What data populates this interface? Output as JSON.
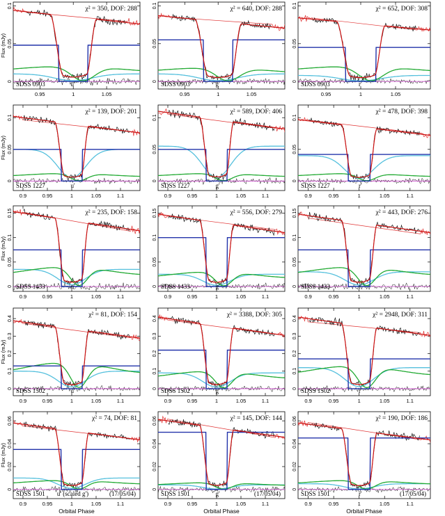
{
  "figure": {
    "xlabel": "Orbital Phase",
    "ylabel": "Flux (mJy)",
    "colors": {
      "data": "#111111",
      "data_unused": "#e03030",
      "model": "#cc1010",
      "white_dwarf": "#2233aa",
      "bright_spot": "#22aa33",
      "disc": "#55c0dd",
      "residual_zero": "#cc44cc"
    }
  },
  "chart_data": [
    {
      "type": "line",
      "object": "SDSS 0903",
      "band": "u'",
      "chi2": 350,
      "dof": 288,
      "title": "χ² = 350, DOF: 288",
      "label": "SDSS 0903",
      "band_label": "u'",
      "date": "",
      "xlim": [
        0.91,
        1.1
      ],
      "ylim": [
        -0.01,
        0.105
      ],
      "xticks": [
        0.95,
        1,
        1.05
      ],
      "yticks": [
        0,
        0.05,
        0.1
      ],
      "xlabel": "",
      "ylabel": "Flux (mJy)",
      "levels": {
        "total": 0.095,
        "wd": 0.048,
        "bs": 0.02,
        "disc": 0.01
      }
    },
    {
      "type": "line",
      "object": "SDSS 0903",
      "band": "g'",
      "chi2": 640,
      "dof": 288,
      "title": "χ² = 640, DOF: 288",
      "label": "SDSS 0903",
      "band_label": "g'",
      "date": "",
      "xlim": [
        0.91,
        1.1
      ],
      "ylim": [
        -0.01,
        0.105
      ],
      "xticks": [
        0.95,
        1,
        1.05
      ],
      "yticks": [
        0,
        0.05,
        0.1
      ],
      "xlabel": "",
      "ylabel": "",
      "levels": {
        "total": 0.088,
        "wd": 0.055,
        "bs": 0.018,
        "disc": 0.01
      }
    },
    {
      "type": "line",
      "object": "SDSS 0903",
      "band": "r'",
      "chi2": 652,
      "dof": 308,
      "title": "χ² = 652, DOF: 308",
      "label": "SDSS 0903",
      "band_label": "r'",
      "date": "",
      "xlim": [
        0.91,
        1.1
      ],
      "ylim": [
        -0.01,
        0.105
      ],
      "xticks": [
        0.95,
        1,
        1.05
      ],
      "yticks": [
        0,
        0.05,
        0.1
      ],
      "xlabel": "",
      "ylabel": "",
      "levels": {
        "total": 0.085,
        "wd": 0.045,
        "bs": 0.02,
        "disc": 0.008
      }
    },
    {
      "type": "line",
      "object": "SDSS 1227",
      "band": "u'",
      "chi2": 139,
      "dof": 201,
      "title": "χ² = 139, DOF: 201",
      "label": "SDSS 1227",
      "band_label": "u'",
      "date": "",
      "xlim": [
        0.88,
        1.14
      ],
      "ylim": [
        -0.015,
        0.12
      ],
      "xticks": [
        0.9,
        0.95,
        1,
        1.05,
        1.1
      ],
      "yticks": [
        0,
        0.05,
        0.1
      ],
      "xlabel": "",
      "ylabel": "Flux (mJy)",
      "levels": {
        "total": 0.1,
        "wd": 0.05,
        "bs": 0.012,
        "disc": 0.05
      }
    },
    {
      "type": "line",
      "object": "SDSS 1227",
      "band": "g'",
      "chi2": 589,
      "dof": 406,
      "title": "χ² = 589, DOF: 406",
      "label": "SDSS 1227",
      "band_label": "g'",
      "date": "",
      "xlim": [
        0.88,
        1.14
      ],
      "ylim": [
        -0.015,
        0.12
      ],
      "xticks": [
        0.9,
        0.95,
        1,
        1.05,
        1.1
      ],
      "yticks": [
        0,
        0.05,
        0.1
      ],
      "xlabel": "",
      "ylabel": "",
      "levels": {
        "total": 0.108,
        "wd": 0.05,
        "bs": 0.012,
        "disc": 0.055
      }
    },
    {
      "type": "line",
      "object": "SDSS 1227",
      "band": "r'",
      "chi2": 478,
      "dof": 398,
      "title": "χ² = 478, DOF: 398",
      "label": "SDSS 1227",
      "band_label": "r'",
      "date": "",
      "xlim": [
        0.88,
        1.14
      ],
      "ylim": [
        -0.015,
        0.12
      ],
      "xticks": [
        0.9,
        0.95,
        1,
        1.05,
        1.1
      ],
      "yticks": [
        0,
        0.05,
        0.1
      ],
      "xlabel": "",
      "ylabel": "",
      "levels": {
        "total": 0.095,
        "wd": 0.042,
        "bs": 0.012,
        "disc": 0.04
      }
    },
    {
      "type": "line",
      "object": "SDSS 1433",
      "band": "u'",
      "chi2": 235,
      "dof": 158,
      "title": "χ² = 235, DOF: 158",
      "label": "SDSS 1433",
      "band_label": "u'",
      "date": "",
      "xlim": [
        0.88,
        1.14
      ],
      "ylim": [
        -0.01,
        0.165
      ],
      "xticks": [
        0.9,
        0.95,
        1,
        1.05,
        1.1
      ],
      "yticks": [
        0,
        0.05,
        0.1,
        0.15
      ],
      "xlabel": "",
      "ylabel": "Flux (mJy)",
      "levels": {
        "total": 0.15,
        "wd": 0.075,
        "bs": 0.04,
        "disc": 0.035
      }
    },
    {
      "type": "line",
      "object": "SDSS 1433",
      "band": "g'",
      "chi2": 556,
      "dof": 279,
      "title": "χ² = 556, DOF: 279",
      "label": "SDSS 1433",
      "band_label": "g'",
      "date": "",
      "xlim": [
        0.88,
        1.14
      ],
      "ylim": [
        -0.01,
        0.165
      ],
      "xticks": [
        0.9,
        0.95,
        1,
        1.05,
        1.1
      ],
      "yticks": [
        0,
        0.05,
        0.1,
        0.15
      ],
      "xlabel": "",
      "ylabel": "",
      "levels": {
        "total": 0.145,
        "wd": 0.1,
        "bs": 0.03,
        "disc": 0.025
      }
    },
    {
      "type": "line",
      "object": "SDSS 1433",
      "band": "r'",
      "chi2": 443,
      "dof": 276,
      "title": "χ² = 443, DOF: 276",
      "label": "SDSS 1433",
      "band_label": "r'",
      "date": "",
      "xlim": [
        0.88,
        1.14
      ],
      "ylim": [
        -0.01,
        0.165
      ],
      "xticks": [
        0.9,
        0.95,
        1,
        1.05,
        1.1
      ],
      "yticks": [
        0,
        0.05,
        0.1,
        0.15
      ],
      "xlabel": "",
      "ylabel": "",
      "levels": {
        "total": 0.145,
        "wd": 0.075,
        "bs": 0.04,
        "disc": 0.03
      }
    },
    {
      "type": "line",
      "object": "SDSS 1502",
      "band": "u'",
      "chi2": 81,
      "dof": 154,
      "title": "χ² = 81, DOF: 154",
      "label": "SDSS 1502",
      "band_label": "u'",
      "date": "",
      "xlim": [
        0.88,
        1.14
      ],
      "ylim": [
        -0.04,
        0.46
      ],
      "xticks": [
        0.9,
        0.95,
        1,
        1.05,
        1.1
      ],
      "yticks": [
        0,
        0.1,
        0.2,
        0.3,
        0.4
      ],
      "xlabel": "",
      "ylabel": "Flux (mJy)",
      "levels": {
        "total": 0.38,
        "wd": 0.13,
        "bs": 0.15,
        "disc": 0.1
      }
    },
    {
      "type": "line",
      "object": "SDSS 1502",
      "band": "g'",
      "chi2": 3388,
      "dof": 305,
      "title": "χ² = 3388, DOF: 305",
      "label": "SDSS 1502",
      "band_label": "g'",
      "date": "",
      "xlim": [
        0.88,
        1.14
      ],
      "ylim": [
        -0.04,
        0.46
      ],
      "xticks": [
        0.9,
        0.95,
        1,
        1.05,
        1.1
      ],
      "yticks": [
        0,
        0.1,
        0.2,
        0.3,
        0.4
      ],
      "xlabel": "",
      "ylabel": "",
      "levels": {
        "total": 0.4,
        "wd": 0.22,
        "bs": 0.1,
        "disc": 0.09
      }
    },
    {
      "type": "line",
      "object": "SDSS 1502",
      "band": "r'",
      "chi2": 2948,
      "dof": 311,
      "title": "χ² = 2948, DOF: 311",
      "label": "SDSS 1502",
      "band_label": "r'",
      "date": "",
      "xlim": [
        0.88,
        1.14
      ],
      "ylim": [
        -0.04,
        0.46
      ],
      "xticks": [
        0.9,
        0.95,
        1,
        1.05,
        1.1
      ],
      "yticks": [
        0,
        0.1,
        0.2,
        0.3,
        0.4
      ],
      "xlabel": "",
      "ylabel": "",
      "levels": {
        "total": 0.4,
        "wd": 0.17,
        "bs": 0.13,
        "disc": 0.12
      }
    },
    {
      "type": "line",
      "object": "SDSS 1501",
      "band": "u'",
      "chi2": 74,
      "dof": 81,
      "title": "χ² = 74, DOF: 81",
      "label": "SDSS 1501",
      "band_label": "u' (scaled g')",
      "date": "(17/05/04)",
      "xlim": [
        0.88,
        1.14
      ],
      "ylim": [
        -0.008,
        0.068
      ],
      "xticks": [
        0.9,
        0.95,
        1,
        1.05,
        1.1
      ],
      "yticks": [
        0,
        0.02,
        0.04,
        0.06
      ],
      "xlabel": "Orbital Phase",
      "ylabel": "Flux (mJy)",
      "levels": {
        "total": 0.057,
        "wd": 0.035,
        "bs": 0.008,
        "disc": 0.01
      }
    },
    {
      "type": "line",
      "object": "SDSS 1501",
      "band": "g'",
      "chi2": 145,
      "dof": 144,
      "title": "χ² = 145, DOF: 144",
      "label": "SDSS 1501",
      "band_label": "g'",
      "date": "(17/05/04)",
      "xlim": [
        0.88,
        1.14
      ],
      "ylim": [
        -0.008,
        0.068
      ],
      "xticks": [
        0.9,
        0.95,
        1,
        1.05,
        1.1
      ],
      "yticks": [
        0,
        0.02,
        0.04,
        0.06
      ],
      "xlabel": "Orbital Phase",
      "ylabel": "",
      "levels": {
        "total": 0.06,
        "wd": 0.05,
        "bs": 0.006,
        "disc": 0.004
      }
    },
    {
      "type": "line",
      "object": "SDSS 1501",
      "band": "r'",
      "chi2": 190,
      "dof": 186,
      "title": "χ² = 190, DOF: 186",
      "label": "SDSS 1501",
      "band_label": "r'",
      "date": "(17/05/04)",
      "xlim": [
        0.88,
        1.14
      ],
      "ylim": [
        -0.008,
        0.068
      ],
      "xticks": [
        0.9,
        0.95,
        1,
        1.05,
        1.1
      ],
      "yticks": [
        0,
        0.02,
        0.04,
        0.06
      ],
      "xlabel": "Orbital Phase",
      "ylabel": "",
      "levels": {
        "total": 0.057,
        "wd": 0.045,
        "bs": 0.008,
        "disc": 0.005
      }
    }
  ]
}
